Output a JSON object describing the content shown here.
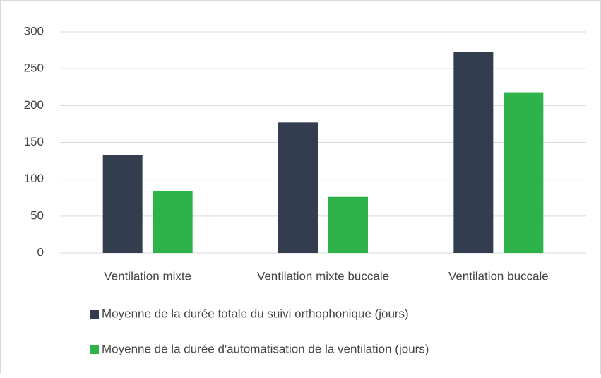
{
  "chart_data": {
    "type": "bar",
    "categories": [
      "Ventilation mixte",
      "Ventilation mixte buccale",
      "Ventilation buccale"
    ],
    "series": [
      {
        "name": "Moyenne de la durée totale du suivi orthophonique (jours)",
        "color": "#323d4f",
        "values": [
          133,
          177,
          273
        ]
      },
      {
        "name": "Moyenne de la durée d'automatisation de la ventilation (jours)",
        "color": "#2db34a",
        "values": [
          84,
          76,
          218
        ]
      }
    ],
    "ylim": [
      0,
      300
    ],
    "yticks": [
      0,
      50,
      100,
      150,
      200,
      250,
      300
    ],
    "grid": true,
    "legend": "bottom"
  }
}
